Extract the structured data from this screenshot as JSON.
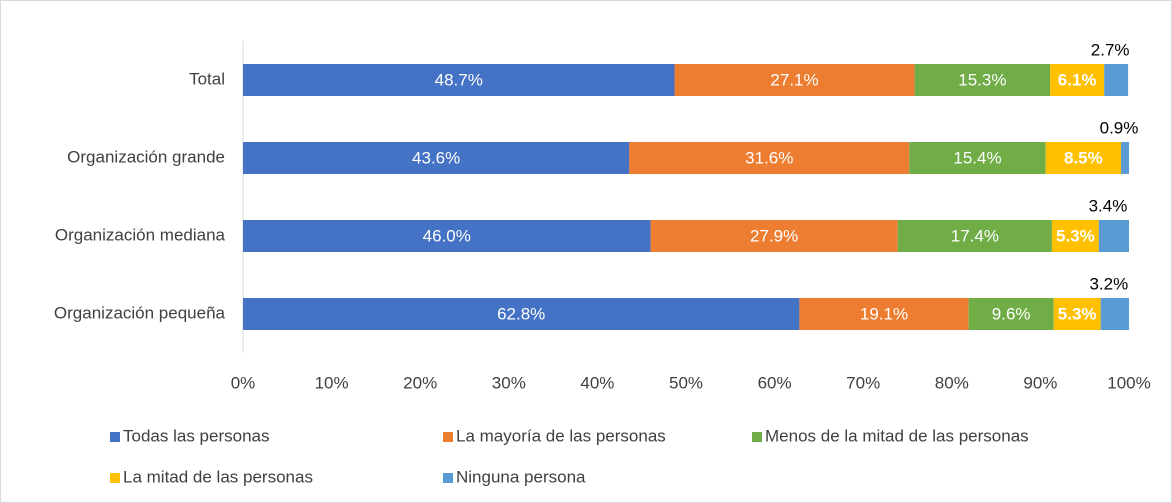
{
  "chart_data": {
    "type": "stacked-barh",
    "categories": [
      "Total",
      "Organización grande",
      "Organización mediana",
      "Organización pequeña"
    ],
    "series": [
      {
        "name": "Todas las personas",
        "color": "#4472c4",
        "values": [
          48.7,
          43.6,
          46.0,
          62.8
        ],
        "value_labels": [
          "48.7%",
          "43.6%",
          "46.0%",
          "62.8%"
        ]
      },
      {
        "name": "La mayoría de las personas",
        "color": "#ed7d31",
        "values": [
          27.1,
          31.6,
          27.9,
          19.1
        ],
        "value_labels": [
          "27.1%",
          "31.6%",
          "27.9%",
          "19.1%"
        ]
      },
      {
        "name": "Menos de la mitad de las personas",
        "color": "#70ad47",
        "values": [
          15.3,
          15.4,
          17.4,
          9.6
        ],
        "value_labels": [
          "15.3%",
          "15.4%",
          "17.4%",
          "9.6%"
        ]
      },
      {
        "name": "La mitad de las personas",
        "color": "#ffc000",
        "values": [
          6.1,
          8.5,
          5.3,
          5.3
        ],
        "value_labels": [
          "6.1%",
          "8.5%",
          "5.3%",
          "5.3%"
        ]
      },
      {
        "name": "Ninguna persona",
        "color": "#5b9bd5",
        "values": [
          2.7,
          0.9,
          3.4,
          3.2
        ],
        "value_labels": [
          "2.7%",
          "0.9%",
          "3.4%",
          "3.2%"
        ]
      }
    ],
    "xlim": [
      0,
      100
    ],
    "xticks": [
      {
        "value": 0,
        "label": "0%"
      },
      {
        "value": 10,
        "label": "10%"
      },
      {
        "value": 20,
        "label": "20%"
      },
      {
        "value": 30,
        "label": "30%"
      },
      {
        "value": 40,
        "label": "40%"
      },
      {
        "value": 50,
        "label": "50%"
      },
      {
        "value": 60,
        "label": "60%"
      },
      {
        "value": 70,
        "label": "70%"
      },
      {
        "value": 80,
        "label": "80%"
      },
      {
        "value": 90,
        "label": "90%"
      },
      {
        "value": 100,
        "label": "100%"
      }
    ],
    "grid": false
  }
}
